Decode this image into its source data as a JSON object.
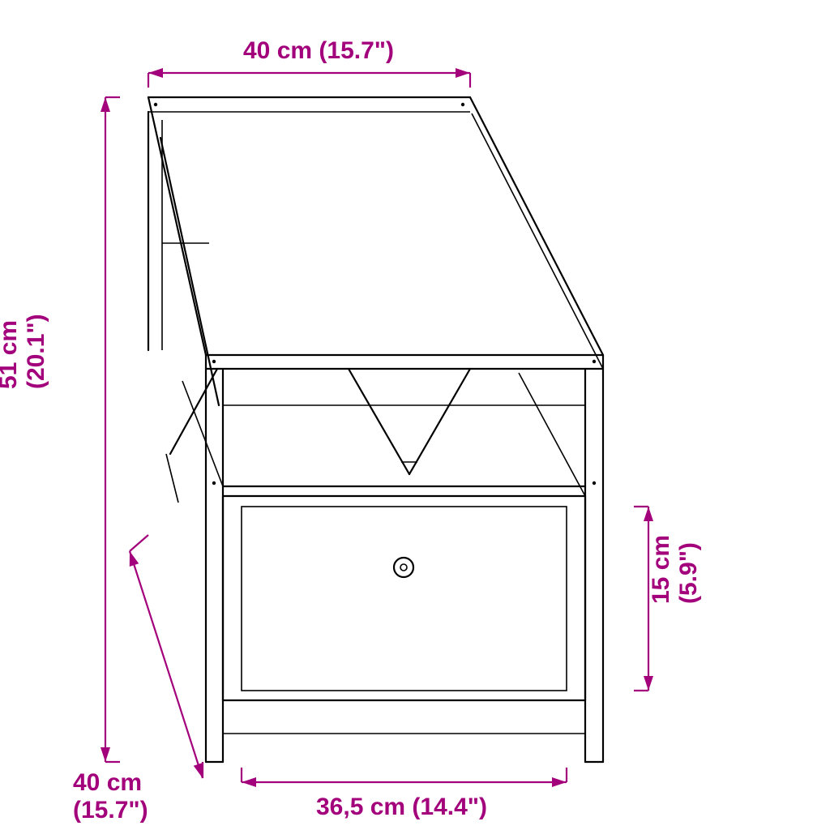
{
  "accent_color": "#a3007b",
  "background_color": "#ffffff",
  "line_color": "#000000",
  "dims": {
    "top": {
      "label": "40 cm (15.7\")"
    },
    "left": {
      "label": "51 cm (20.1\")"
    },
    "depth": {
      "label": "40 cm (15.7\")"
    },
    "drawer_width": {
      "label": "36,5 cm (14.4\")"
    },
    "drawer_height": {
      "label": "15 cm (5.9\")"
    }
  },
  "font_size_pt": 30,
  "arrow_len": 18,
  "tick_len": 18
}
